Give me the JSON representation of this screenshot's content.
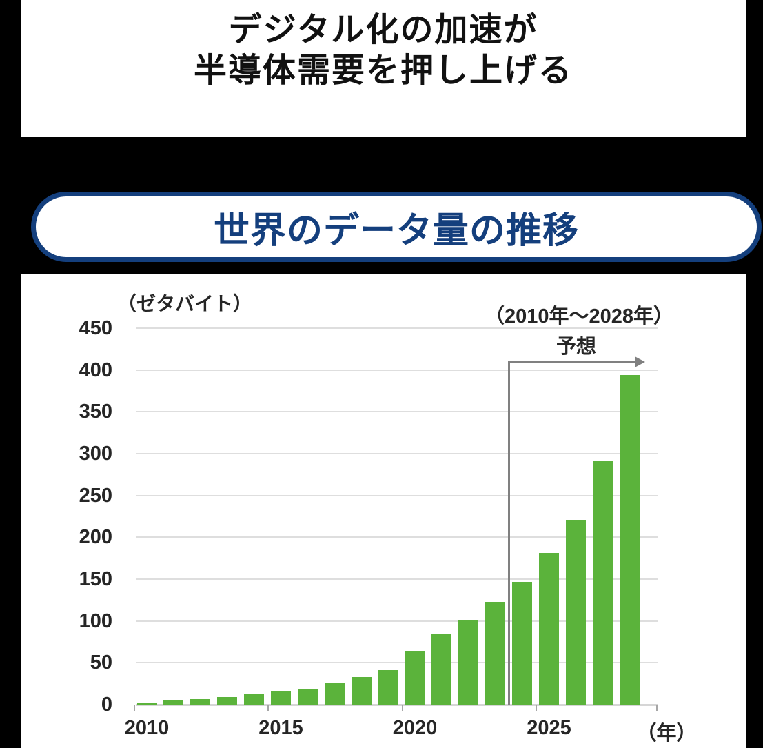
{
  "page": {
    "title_line1": "デジタル化の加速が",
    "title_line2": "半導体需要を押し上げる",
    "banner": "世界のデータ量の推移"
  },
  "colors": {
    "accent_navy": "#143f7d",
    "bar_green": "#5bb33b",
    "forecast_gray": "#808080",
    "gridline_gray": "#dedede"
  },
  "chart_data": {
    "type": "bar",
    "title": "世界のデータ量の推移",
    "unit_label": "（ゼタバイト）",
    "range_label": "（2010年～2028年）",
    "forecast_label": "予想",
    "year_axis_label": "（年）",
    "categories": [
      "2010",
      "2011",
      "2012",
      "2013",
      "2014",
      "2015",
      "2016",
      "2017",
      "2018",
      "2019",
      "2020",
      "2021",
      "2022",
      "2023",
      "2024",
      "2025",
      "2026",
      "2027",
      "2028"
    ],
    "values": [
      2,
      5,
      6.5,
      9,
      12.5,
      15.5,
      18,
      26,
      33,
      41,
      64,
      84,
      101,
      123,
      147,
      181,
      221,
      291,
      394
    ],
    "forecast_from": "2024",
    "x_tick_labels": [
      "2010",
      "2015",
      "2020",
      "2025"
    ],
    "y_ticks": [
      0,
      50,
      100,
      150,
      200,
      250,
      300,
      350,
      400,
      450
    ],
    "ylim": [
      0,
      450
    ],
    "grid": true,
    "legend": "none",
    "bar_color": "#5bb33b"
  }
}
